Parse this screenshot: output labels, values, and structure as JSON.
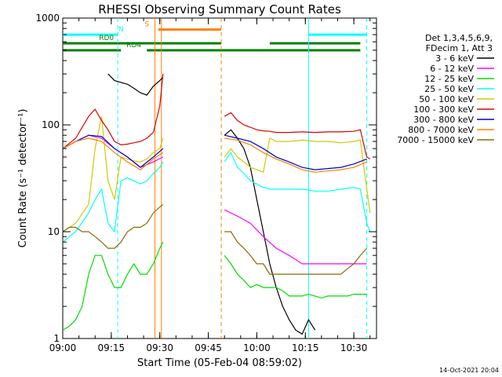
{
  "chart_data": {
    "type": "line",
    "title": "RHESSI Observing Summary Count Rates",
    "xlabel": "Start Time (05-Feb-04 08:59:02)",
    "ylabel": "Count Rate (s⁻¹ detector⁻¹)",
    "ylim": [
      1,
      1000
    ],
    "yscale": "log",
    "xlim_minutes": [
      0,
      97
    ],
    "x_ticks": [
      {
        "t": 0,
        "label": "09:00"
      },
      {
        "t": 15,
        "label": "09:15"
      },
      {
        "t": 30,
        "label": "09:30"
      },
      {
        "t": 45,
        "label": "09:45"
      },
      {
        "t": 60,
        "label": "10:00"
      },
      {
        "t": 75,
        "label": "10:15"
      },
      {
        "t": 90,
        "label": "10:30"
      }
    ],
    "y_ticks": [
      {
        "v": 1,
        "label": "1"
      },
      {
        "v": 10,
        "label": "10"
      },
      {
        "v": 100,
        "label": "100"
      },
      {
        "v": 1000,
        "label": "1000"
      }
    ],
    "legend": {
      "position": "right",
      "header": [
        "Det 1,3,4,5,6,9,",
        "FDecim 1, Att 3"
      ],
      "entries": [
        {
          "label": "3 - 6 keV",
          "color": "#000000"
        },
        {
          "label": "6 - 12 keV",
          "color": "#ff00ff"
        },
        {
          "label": "12 - 25 keV",
          "color": "#00dd00"
        },
        {
          "label": "25 - 50 keV",
          "color": "#00ffff"
        },
        {
          "label": "50 - 100 keV",
          "color": "#cccc00"
        },
        {
          "label": "100 - 300 keV",
          "color": "#dd0000"
        },
        {
          "label": "300 - 800 keV",
          "color": "#0000cc"
        },
        {
          "label": "800 - 7000 keV",
          "color": "#ff8000"
        },
        {
          "label": "7000 - 15000 keV",
          "color": "#8b6b00"
        }
      ]
    },
    "flags": [
      {
        "label": "N",
        "color": "#00ffff",
        "y": 700,
        "segments": [
          [
            0,
            17
          ],
          [
            76,
            94
          ]
        ]
      },
      {
        "label": "S",
        "color": "#ff8000",
        "y": 780,
        "segments": [
          [
            29.5,
            49
          ]
        ]
      },
      {
        "label": "RD0",
        "color": "#008000",
        "y": 580,
        "segments": [
          [
            0,
            49
          ],
          [
            64,
            92
          ]
        ]
      },
      {
        "label": "RD4",
        "color": "#008000",
        "y": 500,
        "segments": [
          [
            0,
            18
          ],
          [
            26,
            92
          ]
        ]
      }
    ],
    "markers": [
      {
        "t": 17,
        "color": "#00ffff",
        "style": "dashed"
      },
      {
        "t": 28.5,
        "color": "#ff8000",
        "style": "solid"
      },
      {
        "t": 30.5,
        "color": "#ff8000",
        "style": "solid"
      },
      {
        "t": 49,
        "color": "#ff8000",
        "style": "dashed"
      },
      {
        "t": 76,
        "color": "#00ffff",
        "style": "solid"
      },
      {
        "t": 94,
        "color": "#00ffff",
        "style": "dashed"
      }
    ],
    "series": [
      {
        "name": "3 - 6 keV",
        "color": "#000000",
        "points": [
          [
            14,
            300
          ],
          [
            16,
            260
          ],
          [
            18,
            250
          ],
          [
            20,
            240
          ],
          [
            22,
            220
          ],
          [
            24,
            200
          ],
          [
            26,
            190
          ],
          [
            28,
            230
          ],
          [
            30,
            260
          ],
          [
            31,
            280
          ],
          [
            null,
            null
          ],
          [
            50,
            80
          ],
          [
            52,
            90
          ],
          [
            54,
            75
          ],
          [
            56,
            60
          ],
          [
            58,
            40
          ],
          [
            60,
            20
          ],
          [
            62,
            10
          ],
          [
            64,
            5
          ],
          [
            66,
            3
          ],
          [
            68,
            2
          ],
          [
            70,
            1.5
          ],
          [
            72,
            1.2
          ],
          [
            74,
            1.1
          ],
          [
            76,
            1.5
          ],
          [
            78,
            1.2
          ]
        ]
      },
      {
        "name": "6 - 12 keV",
        "color": "#ff00ff",
        "points": [
          [
            0,
            60
          ],
          [
            4,
            70
          ],
          [
            8,
            80
          ],
          [
            12,
            75
          ],
          [
            16,
            60
          ],
          [
            20,
            50
          ],
          [
            24,
            40
          ],
          [
            28,
            45
          ],
          [
            31,
            50
          ],
          [
            null,
            null
          ],
          [
            50,
            16
          ],
          [
            54,
            14
          ],
          [
            58,
            12
          ],
          [
            62,
            9
          ],
          [
            66,
            7
          ],
          [
            70,
            6
          ],
          [
            74,
            5
          ],
          [
            78,
            5
          ],
          [
            82,
            5
          ],
          [
            86,
            5
          ],
          [
            90,
            5
          ],
          [
            94,
            5
          ]
        ]
      },
      {
        "name": "12 - 25 keV",
        "color": "#00dd00",
        "points": [
          [
            0,
            1.2
          ],
          [
            2,
            1.3
          ],
          [
            4,
            1.5
          ],
          [
            6,
            2
          ],
          [
            8,
            4
          ],
          [
            10,
            6
          ],
          [
            12,
            6
          ],
          [
            14,
            4
          ],
          [
            16,
            3
          ],
          [
            18,
            3
          ],
          [
            20,
            4
          ],
          [
            22,
            5
          ],
          [
            24,
            4
          ],
          [
            26,
            4
          ],
          [
            28,
            5
          ],
          [
            30,
            7
          ],
          [
            31,
            8
          ],
          [
            null,
            null
          ],
          [
            50,
            6
          ],
          [
            52,
            5
          ],
          [
            54,
            4
          ],
          [
            56,
            3.5
          ],
          [
            58,
            3
          ],
          [
            60,
            3.2
          ],
          [
            62,
            3
          ],
          [
            64,
            3
          ],
          [
            66,
            3
          ],
          [
            68,
            2.8
          ],
          [
            70,
            2.5
          ],
          [
            72,
            2.5
          ],
          [
            74,
            2.5
          ],
          [
            76,
            2.6
          ],
          [
            78,
            2.5
          ],
          [
            80,
            2.4
          ],
          [
            82,
            2.5
          ],
          [
            84,
            2.5
          ],
          [
            86,
            2.5
          ],
          [
            88,
            2.5
          ],
          [
            90,
            2.6
          ],
          [
            92,
            2.6
          ],
          [
            94,
            2.6
          ]
        ]
      },
      {
        "name": "25 - 50 keV",
        "color": "#00ffff",
        "points": [
          [
            0,
            8
          ],
          [
            4,
            10
          ],
          [
            8,
            15
          ],
          [
            10,
            20
          ],
          [
            12,
            25
          ],
          [
            14,
            12
          ],
          [
            16,
            10
          ],
          [
            18,
            30
          ],
          [
            20,
            32
          ],
          [
            22,
            30
          ],
          [
            24,
            28
          ],
          [
            26,
            30
          ],
          [
            28,
            35
          ],
          [
            30,
            40
          ],
          [
            31,
            45
          ],
          [
            null,
            null
          ],
          [
            50,
            45
          ],
          [
            52,
            55
          ],
          [
            54,
            40
          ],
          [
            56,
            35
          ],
          [
            58,
            30
          ],
          [
            60,
            28
          ],
          [
            62,
            26
          ],
          [
            64,
            25
          ],
          [
            66,
            25
          ],
          [
            70,
            25
          ],
          [
            74,
            25
          ],
          [
            78,
            24
          ],
          [
            82,
            24
          ],
          [
            86,
            25
          ],
          [
            90,
            26
          ],
          [
            92,
            25
          ],
          [
            94,
            12
          ],
          [
            95,
            10
          ]
        ]
      },
      {
        "name": "50 - 100 keV",
        "color": "#cccc00",
        "points": [
          [
            0,
            10
          ],
          [
            4,
            12
          ],
          [
            8,
            18
          ],
          [
            10,
            60
          ],
          [
            12,
            120
          ],
          [
            14,
            30
          ],
          [
            16,
            20
          ],
          [
            18,
            50
          ],
          [
            20,
            48
          ],
          [
            22,
            46
          ],
          [
            24,
            45
          ],
          [
            26,
            48
          ],
          [
            28,
            55
          ],
          [
            30,
            60
          ],
          [
            31,
            75
          ],
          [
            null,
            null
          ],
          [
            50,
            50
          ],
          [
            52,
            60
          ],
          [
            54,
            50
          ],
          [
            56,
            45
          ],
          [
            58,
            40
          ],
          [
            60,
            38
          ],
          [
            62,
            36
          ],
          [
            64,
            75
          ],
          [
            66,
            70
          ],
          [
            70,
            70
          ],
          [
            74,
            72
          ],
          [
            78,
            70
          ],
          [
            82,
            70
          ],
          [
            86,
            68
          ],
          [
            90,
            70
          ],
          [
            92,
            72
          ],
          [
            94,
            25
          ],
          [
            95,
            15
          ]
        ]
      },
      {
        "name": "100 - 300 keV",
        "color": "#dd0000",
        "points": [
          [
            0,
            60
          ],
          [
            4,
            75
          ],
          [
            8,
            120
          ],
          [
            10,
            140
          ],
          [
            12,
            110
          ],
          [
            14,
            90
          ],
          [
            16,
            70
          ],
          [
            18,
            65
          ],
          [
            20,
            66
          ],
          [
            22,
            68
          ],
          [
            24,
            70
          ],
          [
            26,
            75
          ],
          [
            28,
            85
          ],
          [
            30,
            150
          ],
          [
            31,
            300
          ],
          [
            null,
            null
          ],
          [
            50,
            120
          ],
          [
            52,
            130
          ],
          [
            54,
            110
          ],
          [
            56,
            100
          ],
          [
            58,
            95
          ],
          [
            60,
            90
          ],
          [
            62,
            88
          ],
          [
            64,
            87
          ],
          [
            66,
            85
          ],
          [
            70,
            85
          ],
          [
            74,
            86
          ],
          [
            78,
            85
          ],
          [
            82,
            86
          ],
          [
            86,
            86
          ],
          [
            90,
            87
          ],
          [
            92,
            90
          ],
          [
            94,
            50
          ],
          [
            95,
            48
          ]
        ]
      },
      {
        "name": "300 - 800 keV",
        "color": "#0000cc",
        "points": [
          [
            0,
            60
          ],
          [
            4,
            70
          ],
          [
            8,
            80
          ],
          [
            12,
            78
          ],
          [
            16,
            60
          ],
          [
            20,
            50
          ],
          [
            24,
            40
          ],
          [
            28,
            50
          ],
          [
            31,
            60
          ],
          [
            null,
            null
          ],
          [
            50,
            80
          ],
          [
            54,
            75
          ],
          [
            58,
            70
          ],
          [
            62,
            60
          ],
          [
            66,
            50
          ],
          [
            70,
            45
          ],
          [
            74,
            40
          ],
          [
            78,
            38
          ],
          [
            82,
            39
          ],
          [
            86,
            40
          ],
          [
            90,
            43
          ],
          [
            94,
            48
          ]
        ]
      },
      {
        "name": "800 - 7000 keV",
        "color": "#ff8000",
        "points": [
          [
            0,
            60
          ],
          [
            4,
            70
          ],
          [
            8,
            75
          ],
          [
            12,
            70
          ],
          [
            16,
            55
          ],
          [
            20,
            45
          ],
          [
            24,
            38
          ],
          [
            28,
            48
          ],
          [
            31,
            55
          ],
          [
            null,
            null
          ],
          [
            50,
            75
          ],
          [
            54,
            72
          ],
          [
            58,
            65
          ],
          [
            62,
            55
          ],
          [
            66,
            48
          ],
          [
            70,
            43
          ],
          [
            74,
            38
          ],
          [
            78,
            36
          ],
          [
            82,
            37
          ],
          [
            86,
            38
          ],
          [
            90,
            40
          ],
          [
            94,
            45
          ]
        ]
      },
      {
        "name": "7000 - 15000 keV",
        "color": "#8b6b00",
        "points": [
          [
            0,
            10
          ],
          [
            2,
            11
          ],
          [
            4,
            11
          ],
          [
            6,
            10
          ],
          [
            8,
            10
          ],
          [
            10,
            9
          ],
          [
            12,
            8
          ],
          [
            14,
            7
          ],
          [
            16,
            7
          ],
          [
            18,
            8
          ],
          [
            20,
            10
          ],
          [
            22,
            11
          ],
          [
            24,
            11
          ],
          [
            26,
            12
          ],
          [
            28,
            15
          ],
          [
            30,
            17
          ],
          [
            31,
            18
          ],
          [
            null,
            null
          ],
          [
            50,
            10
          ],
          [
            52,
            10
          ],
          [
            54,
            8
          ],
          [
            56,
            7
          ],
          [
            58,
            6
          ],
          [
            60,
            5
          ],
          [
            62,
            5
          ],
          [
            64,
            4
          ],
          [
            66,
            4
          ],
          [
            68,
            4
          ],
          [
            70,
            4
          ],
          [
            74,
            4
          ],
          [
            78,
            4
          ],
          [
            82,
            4
          ],
          [
            86,
            4
          ],
          [
            88,
            4.5
          ],
          [
            90,
            5
          ],
          [
            92,
            6
          ],
          [
            94,
            7
          ]
        ]
      }
    ]
  },
  "footer": {
    "timestamp": "14-Oct-2021 20:04"
  }
}
